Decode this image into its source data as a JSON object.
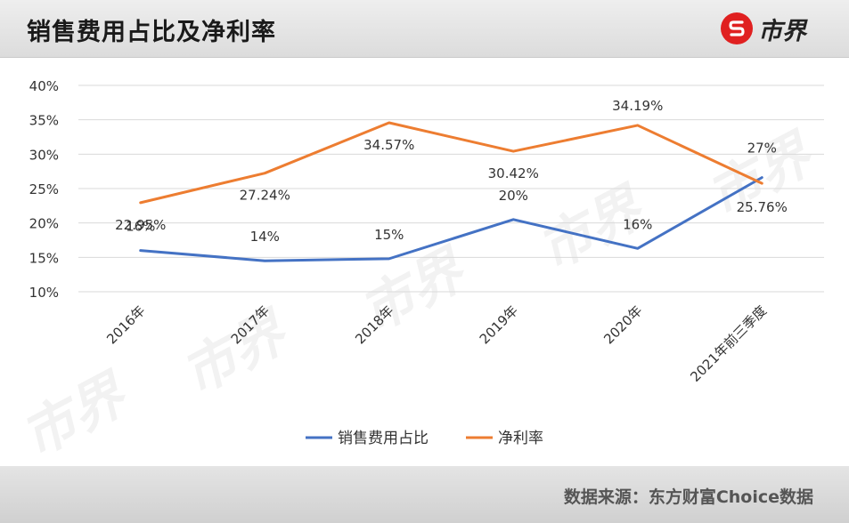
{
  "header": {
    "title": "销售费用占比及净利率",
    "logo_text": "市界"
  },
  "footer": {
    "source": "数据来源：东方财富Choice数据"
  },
  "watermark": "市界",
  "colors": {
    "sales_line": "#4472c4",
    "net_line": "#ed7d31",
    "logo_red": "#e02020"
  },
  "chart_data": {
    "type": "line",
    "categories": [
      "2016年",
      "2017年",
      "2018年",
      "2019年",
      "2020年",
      "2021年前三季度"
    ],
    "y_ticks": [
      "10%",
      "15%",
      "20%",
      "25%",
      "30%",
      "35%",
      "40%"
    ],
    "ylim": [
      10,
      40
    ],
    "grid": true,
    "legend_position": "bottom",
    "series": [
      {
        "name": "销售费用占比",
        "values": [
          16,
          14.5,
          14.8,
          20.5,
          16.3,
          26.6
        ],
        "labels": [
          "16%",
          "14%",
          "15%",
          "20%",
          "16%",
          "27%"
        ]
      },
      {
        "name": "净利率",
        "values": [
          22.95,
          27.24,
          34.57,
          30.42,
          34.19,
          25.76
        ],
        "labels": [
          "22.95%",
          "27.24%",
          "34.57%",
          "30.42%",
          "34.19%",
          "25.76%"
        ]
      }
    ]
  }
}
